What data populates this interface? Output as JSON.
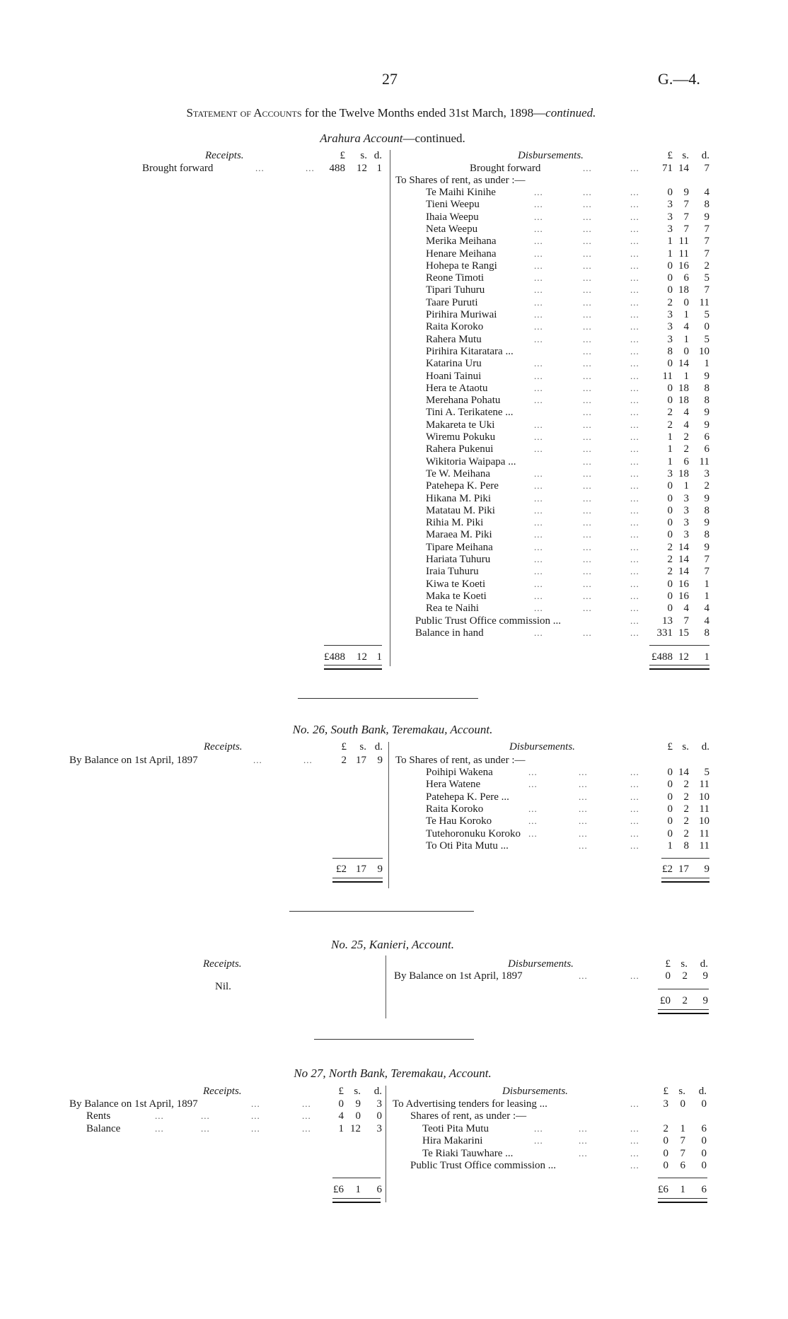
{
  "header": {
    "page_number": "27",
    "doc_ref": "G.—4."
  },
  "title": {
    "lead": "Statement of Accounts",
    "rest": " for the Twelve Months ended 31st March, 1898—",
    "cont": "continued."
  },
  "sections": [
    {
      "title_italic": "Arahura Account",
      "title_rest": "—continued.",
      "receipts_heading": "Receipts.",
      "disbursements_heading": "Disbursements.",
      "lsd": {
        "l": "£",
        "s": "s.",
        "d": "d."
      },
      "receipts": [
        {
          "label": "Brought forward",
          "l": "488",
          "s": "12",
          "d": "1"
        }
      ],
      "disbursements_top": [
        {
          "label": "Brought forward",
          "l": "71",
          "s": "14",
          "d": "7"
        }
      ],
      "shares_heading": "To Shares of rent, as under :—",
      "shares": [
        {
          "label": "Te Maihi Kinihe",
          "l": "0",
          "s": "9",
          "d": "4"
        },
        {
          "label": "Tieni Weepu",
          "l": "3",
          "s": "7",
          "d": "8"
        },
        {
          "label": "Ihaia Weepu",
          "l": "3",
          "s": "7",
          "d": "9"
        },
        {
          "label": "Neta Weepu",
          "l": "3",
          "s": "7",
          "d": "7"
        },
        {
          "label": "Merika Meihana",
          "l": "1",
          "s": "11",
          "d": "7"
        },
        {
          "label": "Henare Meihana",
          "l": "1",
          "s": "11",
          "d": "7"
        },
        {
          "label": "Hohepa te Rangi",
          "l": "0",
          "s": "16",
          "d": "2"
        },
        {
          "label": "Reone Timoti",
          "l": "0",
          "s": "6",
          "d": "5"
        },
        {
          "label": "Tipari Tuhuru",
          "l": "0",
          "s": "18",
          "d": "7"
        },
        {
          "label": "Taare Puruti",
          "l": "2",
          "s": "0",
          "d": "11"
        },
        {
          "label": "Pirihira Muriwai",
          "l": "3",
          "s": "1",
          "d": "5"
        },
        {
          "label": "Raita Koroko",
          "l": "3",
          "s": "4",
          "d": "0"
        },
        {
          "label": "Rahera Mutu",
          "l": "3",
          "s": "1",
          "d": "5"
        },
        {
          "label": "Pirihira Kitaratara ...",
          "l": "8",
          "s": "0",
          "d": "10"
        },
        {
          "label": "Katarina Uru",
          "l": "0",
          "s": "14",
          "d": "1"
        },
        {
          "label": "Hoani Tainui",
          "l": "11",
          "s": "1",
          "d": "9"
        },
        {
          "label": "Hera te Ataotu",
          "l": "0",
          "s": "18",
          "d": "8"
        },
        {
          "label": "Merehana Pohatu",
          "l": "0",
          "s": "18",
          "d": "8"
        },
        {
          "label": "Tini A. Terikatene ...",
          "l": "2",
          "s": "4",
          "d": "9"
        },
        {
          "label": "Makareta te Uki",
          "l": "2",
          "s": "4",
          "d": "9"
        },
        {
          "label": "Wiremu Pokuku",
          "l": "1",
          "s": "2",
          "d": "6"
        },
        {
          "label": "Rahera Pukenui",
          "l": "1",
          "s": "2",
          "d": "6"
        },
        {
          "label": "Wikitoria Waipapa ...",
          "l": "1",
          "s": "6",
          "d": "11"
        },
        {
          "label": "Te W. Meihana",
          "l": "3",
          "s": "18",
          "d": "3"
        },
        {
          "label": "Patehepa K. Pere",
          "l": "0",
          "s": "1",
          "d": "2"
        },
        {
          "label": "Hikana M. Piki",
          "l": "0",
          "s": "3",
          "d": "9"
        },
        {
          "label": "Matatau M. Piki",
          "l": "0",
          "s": "3",
          "d": "8"
        },
        {
          "label": "Rihia M. Piki",
          "l": "0",
          "s": "3",
          "d": "9"
        },
        {
          "label": "Maraea M. Piki",
          "l": "0",
          "s": "3",
          "d": "8"
        },
        {
          "label": "Tipare Meihana",
          "l": "2",
          "s": "14",
          "d": "9"
        },
        {
          "label": "Hariata Tuhuru",
          "l": "2",
          "s": "14",
          "d": "7"
        },
        {
          "label": "Iraia Tuhuru",
          "l": "2",
          "s": "14",
          "d": "7"
        },
        {
          "label": "Kiwa te Koeti",
          "l": "0",
          "s": "16",
          "d": "1"
        },
        {
          "label": "Maka te Koeti",
          "l": "0",
          "s": "16",
          "d": "1"
        },
        {
          "label": "Rea te Naihi",
          "l": "0",
          "s": "4",
          "d": "4"
        }
      ],
      "disbursements_bottom": [
        {
          "label": "Public Trust Office commission ...",
          "l": "13",
          "s": "7",
          "d": "4"
        },
        {
          "label": "Balance in hand",
          "l": "331",
          "s": "15",
          "d": "8"
        }
      ],
      "receipts_total": {
        "l": "£488",
        "s": "12",
        "d": "1"
      },
      "disbursements_total": {
        "l": "£488",
        "s": "12",
        "d": "1"
      }
    },
    {
      "title_prefix": "No. 26, ",
      "title_italic": "South Bank, Teremakau, Account.",
      "receipts_heading": "Receipts.",
      "disbursements_heading": "Disbursements.",
      "lsd": {
        "l": "£",
        "s": "s.",
        "d": "d."
      },
      "receipts": [
        {
          "label": "By Balance on 1st April, 1897",
          "l": "2",
          "s": "17",
          "d": "9"
        }
      ],
      "shares_heading": "To Shares of rent, as under :—",
      "shares": [
        {
          "label": "Poihipi Wakena",
          "l": "0",
          "s": "14",
          "d": "5"
        },
        {
          "label": "Hera Watene",
          "l": "0",
          "s": "2",
          "d": "11"
        },
        {
          "label": "Patehepa K. Pere ...",
          "l": "0",
          "s": "2",
          "d": "10"
        },
        {
          "label": "Raita Koroko",
          "l": "0",
          "s": "2",
          "d": "11"
        },
        {
          "label": "Te Hau Koroko",
          "l": "0",
          "s": "2",
          "d": "10"
        },
        {
          "label": "Tutehoronuku Koroko",
          "l": "0",
          "s": "2",
          "d": "11"
        },
        {
          "label": "To Oti Pita Mutu ...",
          "l": "1",
          "s": "8",
          "d": "11"
        }
      ],
      "receipts_total": {
        "l": "£2",
        "s": "17",
        "d": "9"
      },
      "disbursements_total": {
        "l": "£2",
        "s": "17",
        "d": "9"
      }
    },
    {
      "title_prefix": "No. 25, ",
      "title_italic": "Kanieri, Account.",
      "receipts_heading": "Receipts.",
      "disbursements_heading": "Disbursements.",
      "lsd": {
        "l": "£",
        "s": "s.",
        "d": "d."
      },
      "receipts_nil": "Nil.",
      "disbursements_top": [
        {
          "label": "By Balance on 1st April, 1897",
          "l": "0",
          "s": "2",
          "d": "9"
        }
      ],
      "disbursements_total": {
        "l": "£0",
        "s": "2",
        "d": "9"
      }
    },
    {
      "title_prefix": "No 27, ",
      "title_italic": "North Bank, Teremakau, Account.",
      "receipts_heading": "Receipts.",
      "disbursements_heading": "Disbursements.",
      "lsd": {
        "l": "£",
        "s": "s.",
        "d": "d."
      },
      "receipts": [
        {
          "label": "By Balance on 1st April, 1897",
          "l": "0",
          "s": "9",
          "d": "3"
        },
        {
          "label": "Rents",
          "l": "4",
          "s": "0",
          "d": "0"
        },
        {
          "label": "Balance",
          "l": "1",
          "s": "12",
          "d": "3"
        }
      ],
      "disbursements_top": [
        {
          "label": "To Advertising tenders for leasing ...",
          "l": "3",
          "s": "0",
          "d": "0"
        }
      ],
      "shares_heading": "Shares of rent, as under :—",
      "shares": [
        {
          "label": "Teoti Pita Mutu",
          "l": "2",
          "s": "1",
          "d": "6"
        },
        {
          "label": "Hira Makarini",
          "l": "0",
          "s": "7",
          "d": "0"
        },
        {
          "label": "Te Riaki Tauwhare ...",
          "l": "0",
          "s": "7",
          "d": "0"
        }
      ],
      "disbursements_bottom": [
        {
          "label": "Public Trust Office commission ...",
          "l": "0",
          "s": "6",
          "d": "0"
        }
      ],
      "receipts_total": {
        "l": "£6",
        "s": "1",
        "d": "6"
      },
      "disbursements_total": {
        "l": "£6",
        "s": "1",
        "d": "6"
      }
    }
  ]
}
